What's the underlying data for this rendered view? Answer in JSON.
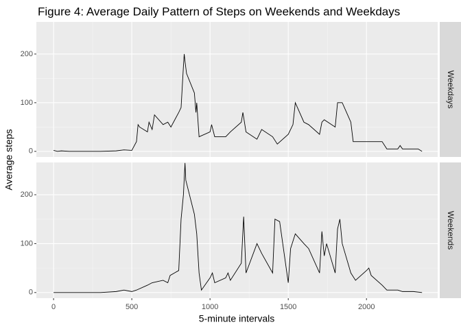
{
  "chart_data": {
    "type": "line",
    "title": "Figure 4: Average Daily Pattern of Steps on Weekends and Weekdays",
    "xlabel": "5-minute intervals",
    "ylabel": "Average steps",
    "color": "#000000",
    "grid": true,
    "xlim": [
      -110,
      2455
    ],
    "ylim": [
      -11.5,
      266
    ],
    "xticks": [
      0,
      500,
      1000,
      1500,
      2000
    ],
    "yticks": [
      0,
      100,
      200
    ],
    "series": [
      {
        "name": "Weekdays",
        "x": [
          0,
          25,
          50,
          100,
          200,
          300,
          400,
          450,
          500,
          530,
          540,
          550,
          600,
          610,
          630,
          645,
          700,
          730,
          750,
          800,
          815,
          830,
          835,
          840,
          850,
          900,
          910,
          915,
          930,
          1000,
          1010,
          1030,
          1100,
          1130,
          1200,
          1210,
          1230,
          1300,
          1330,
          1400,
          1430,
          1500,
          1530,
          1545,
          1600,
          1630,
          1700,
          1715,
          1730,
          1800,
          1815,
          1845,
          1900,
          1915,
          2000,
          2030,
          2100,
          2130,
          2200,
          2215,
          2230,
          2300,
          2330,
          2355
        ],
        "values": [
          2,
          0,
          1,
          0,
          0,
          0,
          1,
          3,
          2,
          20,
          55,
          50,
          40,
          60,
          45,
          75,
          55,
          60,
          50,
          80,
          90,
          175,
          200,
          185,
          160,
          120,
          80,
          100,
          30,
          40,
          55,
          30,
          30,
          40,
          60,
          80,
          40,
          25,
          45,
          30,
          15,
          35,
          55,
          100,
          60,
          55,
          35,
          60,
          65,
          50,
          100,
          100,
          60,
          20,
          20,
          20,
          20,
          5,
          5,
          12,
          5,
          5,
          5,
          0
        ]
      },
      {
        "name": "Weekends",
        "x": [
          0,
          100,
          200,
          300,
          400,
          450,
          500,
          530,
          600,
          630,
          700,
          730,
          745,
          800,
          815,
          830,
          840,
          845,
          900,
          915,
          930,
          945,
          1000,
          1015,
          1030,
          1100,
          1115,
          1130,
          1200,
          1215,
          1230,
          1300,
          1330,
          1400,
          1415,
          1445,
          1500,
          1515,
          1545,
          1600,
          1630,
          1700,
          1715,
          1730,
          1745,
          1800,
          1815,
          1830,
          1845,
          1900,
          1930,
          2000,
          2015,
          2030,
          2100,
          2130,
          2200,
          2230,
          2300,
          2355
        ],
        "values": [
          0,
          0,
          0,
          0,
          2,
          5,
          2,
          5,
          15,
          20,
          25,
          20,
          35,
          45,
          150,
          200,
          265,
          230,
          160,
          120,
          40,
          5,
          30,
          40,
          20,
          30,
          40,
          25,
          60,
          155,
          40,
          100,
          80,
          40,
          150,
          145,
          20,
          90,
          120,
          100,
          90,
          40,
          125,
          75,
          100,
          40,
          130,
          150,
          100,
          40,
          25,
          45,
          50,
          35,
          15,
          5,
          5,
          2,
          2,
          0
        ]
      }
    ]
  }
}
